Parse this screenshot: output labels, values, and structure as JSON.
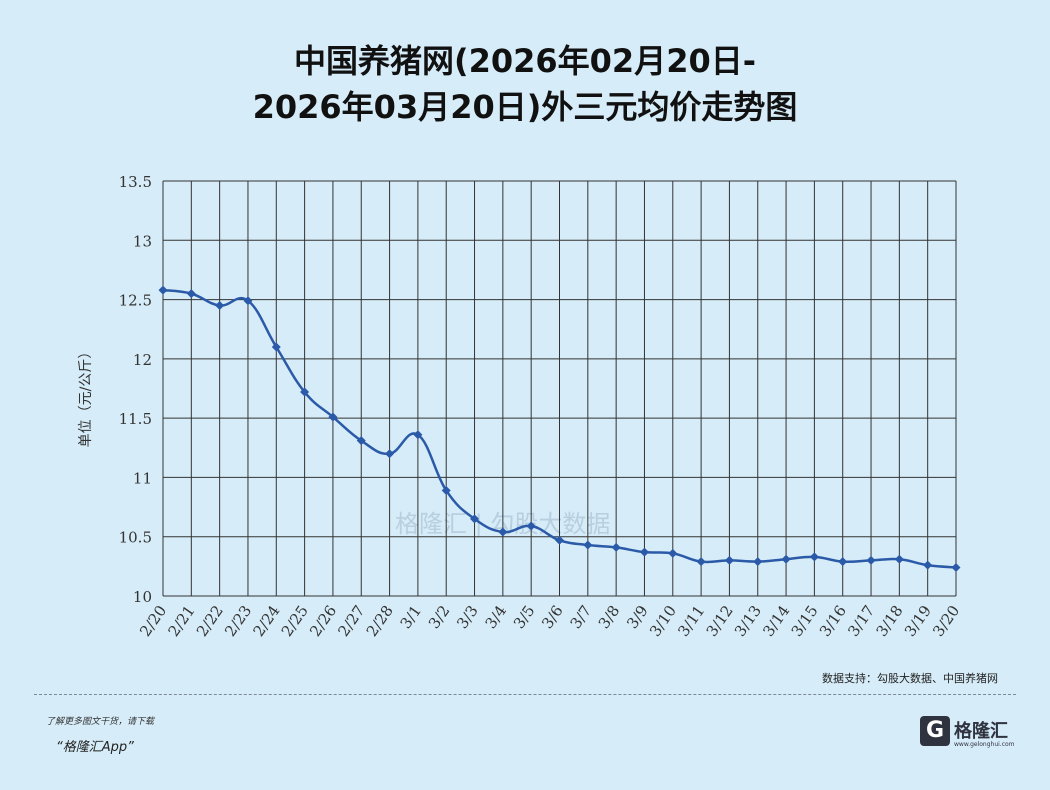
{
  "chart_data": {
    "type": "line",
    "title_line1": "中国养猪网(2026年02月20日-",
    "title_line2": "2026年03月20日)外三元均价走势图",
    "ylabel": "单位（元/公斤）",
    "xlabel": "",
    "ylim": [
      10,
      13.5
    ],
    "y_ticks": [
      "13.5",
      "13",
      "12.5",
      "12",
      "11.5",
      "11",
      "10.5",
      "10"
    ],
    "y_tick_values": [
      13.5,
      13,
      12.5,
      12,
      11.5,
      11,
      10.5,
      10
    ],
    "categories": [
      "2/20",
      "2/21",
      "2/22",
      "2/23",
      "2/24",
      "2/25",
      "2/26",
      "2/27",
      "2/28",
      "3/1",
      "3/2",
      "3/3",
      "3/4",
      "3/5",
      "3/6",
      "3/7",
      "3/8",
      "3/9",
      "3/10",
      "3/11",
      "3/12",
      "3/13",
      "3/14",
      "3/15",
      "3/16",
      "3/17",
      "3/18",
      "3/19",
      "3/20"
    ],
    "values": [
      12.58,
      12.55,
      12.45,
      12.49,
      12.1,
      11.72,
      11.51,
      11.31,
      11.2,
      11.36,
      10.89,
      10.65,
      10.54,
      10.59,
      10.47,
      10.43,
      10.41,
      10.37,
      10.36,
      10.29,
      10.3,
      10.29,
      10.31,
      10.33,
      10.29,
      10.3,
      10.31,
      10.26,
      10.24
    ],
    "grid": true,
    "line_color": "#2b5aa8",
    "grid_color": "#333333"
  },
  "source_text": "数据支持：勾股大数据、中国养猪网",
  "watermark_text": "格隆汇  |  勾股大数据",
  "promo_line1": "了解更多图文干货，请下载",
  "promo_line2": "“格隆汇App”",
  "logo_text": "格隆汇",
  "logo_url": "www.gelonghui.com"
}
